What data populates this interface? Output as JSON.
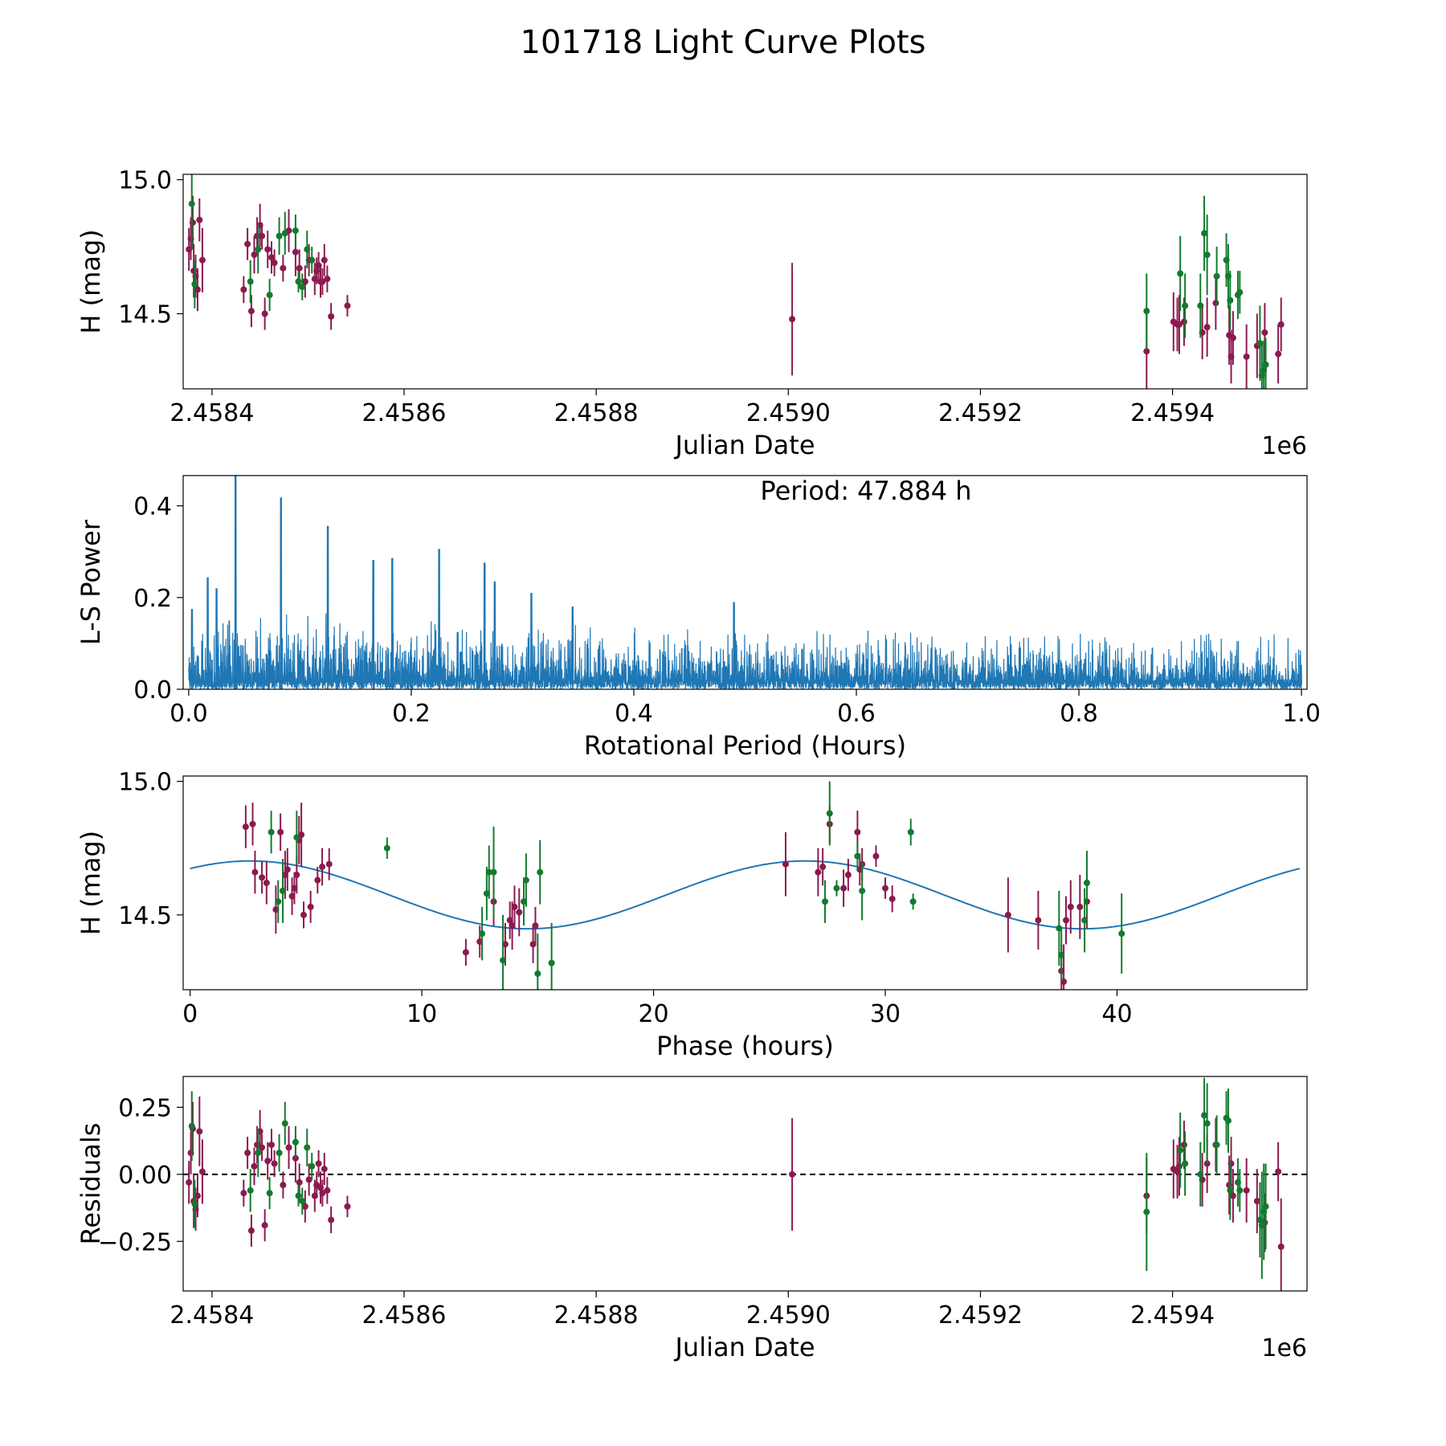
{
  "figure_title": "101718 Light Curve Plots",
  "colors": {
    "magenta": "#8b1a4f",
    "green": "#137a2e",
    "blue": "#1f77b4"
  },
  "chart_data": [
    {
      "id": "lc",
      "type": "scatter",
      "xlabel": "Julian Date",
      "ylabel": "H (mag)",
      "offset_text": "1e6",
      "xlim": [
        2458370,
        2459540
      ],
      "ylim": [
        14.22,
        15.02
      ],
      "xticks": [
        2458400,
        2458600,
        2458800,
        2459000,
        2459200,
        2459400
      ],
      "xtick_labels": [
        "2.4584",
        "2.4586",
        "2.4588",
        "2.4590",
        "2.4592",
        "2.4594"
      ],
      "yticks": [
        14.5,
        15.0
      ],
      "ytick_labels": [
        "14.5",
        "15.0"
      ],
      "series": [
        {
          "name": "magenta",
          "color": "magenta",
          "x": [
            2458376,
            2458378,
            2458380,
            2458381,
            2458383,
            2458385,
            2458387,
            2458390,
            2458433,
            2458437,
            2458441,
            2458444,
            2458447,
            2458450,
            2458452,
            2458455,
            2458458,
            2458462,
            2458465,
            2458474,
            2458480,
            2458487,
            2458491,
            2458497,
            2458501,
            2458507,
            2458509,
            2458511,
            2458513,
            2458515,
            2458517,
            2458520,
            2458524,
            2458541,
            2459004,
            2459373,
            2459401,
            2459405,
            2459407,
            2459412,
            2459431,
            2459436,
            2459445,
            2459459,
            2459461,
            2459463,
            2459477,
            2459488,
            2459496,
            2459510,
            2459513
          ],
          "y": [
            14.74,
            14.78,
            14.84,
            14.66,
            14.64,
            14.59,
            14.85,
            14.7,
            14.59,
            14.76,
            14.51,
            14.72,
            14.79,
            14.83,
            14.79,
            14.5,
            14.74,
            14.71,
            14.69,
            14.67,
            14.81,
            14.73,
            14.67,
            14.62,
            14.7,
            14.63,
            14.66,
            14.68,
            14.62,
            14.62,
            14.7,
            14.63,
            14.49,
            14.53,
            14.48,
            14.36,
            14.47,
            14.46,
            14.46,
            14.47,
            14.43,
            14.45,
            14.54,
            14.42,
            14.34,
            14.41,
            14.34,
            14.38,
            14.43,
            14.35,
            14.46
          ],
          "err": [
            0.08,
            0.08,
            0.1,
            0.1,
            0.08,
            0.08,
            0.08,
            0.12,
            0.05,
            0.06,
            0.06,
            0.07,
            0.07,
            0.08,
            0.05,
            0.06,
            0.07,
            0.06,
            0.05,
            0.05,
            0.08,
            0.09,
            0.07,
            0.06,
            0.06,
            0.06,
            0.05,
            0.05,
            0.06,
            0.05,
            0.06,
            0.05,
            0.05,
            0.04,
            0.21,
            0.14,
            0.11,
            0.1,
            0.11,
            0.09,
            0.1,
            0.11,
            0.1,
            0.11,
            0.1,
            0.1,
            0.12,
            0.12,
            0.11,
            0.11,
            0.1
          ]
        },
        {
          "name": "green",
          "color": "green",
          "x": [
            2458379,
            2458382,
            2458440,
            2458448,
            2458460,
            2458470,
            2458476,
            2458487,
            2458490,
            2458494,
            2458499,
            2458504,
            2459373,
            2459408,
            2459413,
            2459429,
            2459433,
            2459436,
            2459446,
            2459456,
            2459458,
            2459460,
            2459468,
            2459470,
            2459491,
            2459493,
            2459495,
            2459497
          ],
          "y": [
            14.91,
            14.61,
            14.62,
            14.74,
            14.57,
            14.79,
            14.8,
            14.81,
            14.62,
            14.6,
            14.74,
            14.7,
            14.51,
            14.65,
            14.53,
            14.53,
            14.8,
            14.72,
            14.64,
            14.7,
            14.64,
            14.55,
            14.57,
            14.58,
            14.39,
            14.27,
            14.29,
            14.31
          ],
          "err": [
            0.17,
            0.09,
            0.08,
            0.09,
            0.06,
            0.07,
            0.08,
            0.06,
            0.04,
            0.05,
            0.07,
            0.05,
            0.14,
            0.14,
            0.12,
            0.12,
            0.14,
            0.15,
            0.11,
            0.1,
            0.12,
            0.11,
            0.09,
            0.08,
            0.14,
            0.12,
            0.11,
            0.1
          ]
        }
      ]
    },
    {
      "id": "periodogram",
      "type": "line",
      "xlabel": "Rotational Period (Hours)",
      "ylabel": "L-S Power",
      "annotation": "Period: 47.884 h",
      "xlim": [
        -0.005,
        1.005
      ],
      "ylim": [
        0,
        0.466
      ],
      "xticks": [
        0,
        0.2,
        0.4,
        0.6,
        0.8,
        1.0
      ],
      "xtick_labels": [
        "0.0",
        "0.2",
        "0.4",
        "0.6",
        "0.8",
        "1.0"
      ],
      "yticks": [
        0,
        0.2,
        0.4
      ],
      "ytick_labels": [
        "0.0",
        "0.2",
        "0.4"
      ],
      "peaks": [
        {
          "x": 0.042,
          "y": 0.466
        },
        {
          "x": 0.083,
          "y": 0.418
        },
        {
          "x": 0.125,
          "y": 0.356
        },
        {
          "x": 0.166,
          "y": 0.282
        },
        {
          "x": 0.183,
          "y": 0.286
        },
        {
          "x": 0.225,
          "y": 0.306
        },
        {
          "x": 0.266,
          "y": 0.276
        },
        {
          "x": 0.017,
          "y": 0.244
        },
        {
          "x": 0.025,
          "y": 0.22
        },
        {
          "x": 0.275,
          "y": 0.235
        },
        {
          "x": 0.308,
          "y": 0.21
        },
        {
          "x": 0.49,
          "y": 0.19
        },
        {
          "x": 0.345,
          "y": 0.18
        },
        {
          "x": 0.003,
          "y": 0.175
        }
      ],
      "noise_envelope": {
        "x": [
          0,
          0.1,
          0.3,
          0.5,
          1.0
        ],
        "y": [
          0.15,
          0.14,
          0.12,
          0.11,
          0.1
        ]
      }
    },
    {
      "id": "phase",
      "type": "scatter",
      "xlabel": "Phase (hours)",
      "ylabel": "H (mag)",
      "xlim": [
        -0.3,
        48.2
      ],
      "ylim": [
        14.22,
        15.02
      ],
      "xticks": [
        0,
        10,
        20,
        30,
        40
      ],
      "xtick_labels": [
        "0",
        "10",
        "20",
        "30",
        "40"
      ],
      "yticks": [
        14.5,
        15.0
      ],
      "ytick_labels": [
        "14.5",
        "15.0"
      ],
      "model": {
        "mean": 14.575,
        "amplitude": 0.127,
        "period_h": 47.884,
        "peak_phase": 2.6
      },
      "series": [
        {
          "name": "magenta",
          "color": "magenta",
          "x": [
            2.4,
            2.7,
            2.8,
            3.1,
            3.3,
            3.7,
            3.9,
            4.0,
            4.1,
            4.2,
            4.4,
            4.5,
            4.6,
            4.7,
            4.8,
            4.9,
            5.2,
            5.5,
            5.7,
            6.0,
            11.9,
            12.5,
            13.1,
            13.6,
            13.8,
            13.9,
            14.0,
            14.2,
            14.8,
            14.9,
            25.7,
            27.1,
            27.3,
            27.6,
            28.2,
            28.4,
            28.8,
            28.9,
            29.0,
            29.6,
            30.0,
            30.3,
            35.3,
            36.6,
            37.6,
            37.7,
            37.8,
            38.0,
            38.4,
            38.7
          ],
          "y": [
            14.83,
            14.84,
            14.66,
            14.64,
            14.62,
            14.52,
            14.81,
            14.59,
            14.65,
            14.67,
            14.57,
            14.6,
            14.65,
            14.78,
            14.8,
            14.5,
            14.53,
            14.63,
            14.68,
            14.69,
            14.36,
            14.4,
            14.55,
            14.39,
            14.48,
            14.46,
            14.53,
            14.51,
            14.39,
            14.46,
            14.69,
            14.66,
            14.68,
            14.84,
            14.6,
            14.65,
            14.81,
            14.67,
            14.69,
            14.72,
            14.6,
            14.56,
            14.5,
            14.48,
            14.29,
            14.25,
            14.48,
            14.53,
            14.53,
            14.55
          ],
          "err": [
            0.08,
            0.08,
            0.08,
            0.06,
            0.08,
            0.09,
            0.07,
            0.08,
            0.09,
            0.08,
            0.07,
            0.06,
            0.07,
            0.09,
            0.12,
            0.05,
            0.06,
            0.05,
            0.07,
            0.06,
            0.05,
            0.06,
            0.09,
            0.08,
            0.07,
            0.09,
            0.08,
            0.09,
            0.07,
            0.07,
            0.12,
            0.09,
            0.07,
            0.07,
            0.07,
            0.06,
            0.08,
            0.06,
            0.06,
            0.04,
            0.04,
            0.05,
            0.14,
            0.11,
            0.1,
            0.14,
            0.09,
            0.1,
            0.12,
            0.1
          ],
          "hmm": 0
        },
        {
          "name": "green",
          "color": "green",
          "x": [
            3.5,
            3.8,
            4.0,
            4.6,
            8.5,
            12.6,
            12.8,
            12.9,
            13.1,
            13.5,
            14.4,
            14.5,
            15.0,
            15.1,
            15.6,
            27.4,
            27.6,
            27.9,
            28.8,
            29.0,
            31.1,
            31.2,
            37.5,
            37.6,
            38.6,
            38.7,
            40.2
          ],
          "y": [
            14.81,
            14.55,
            14.59,
            14.79,
            14.75,
            14.43,
            14.58,
            14.66,
            14.66,
            14.33,
            14.55,
            14.63,
            14.28,
            14.66,
            14.32,
            14.55,
            14.88,
            14.6,
            14.72,
            14.59,
            14.81,
            14.55,
            14.45,
            14.35,
            14.48,
            14.62,
            14.43
          ],
          "err": [
            0.08,
            0.08,
            0.12,
            0.1,
            0.04,
            0.1,
            0.1,
            0.1,
            0.17,
            0.17,
            0.09,
            0.1,
            0.15,
            0.12,
            0.15,
            0.08,
            0.12,
            0.03,
            0.05,
            0.11,
            0.05,
            0.03,
            0.14,
            0.1,
            0.12,
            0.12,
            0.15
          ]
        }
      ]
    },
    {
      "id": "residuals",
      "type": "scatter",
      "xlabel": "Julian Date",
      "ylabel": "Residuals",
      "offset_text": "1e6",
      "xlim": [
        2458370,
        2459540
      ],
      "ylim": [
        -0.435,
        0.365
      ],
      "xticks": [
        2458400,
        2458600,
        2458800,
        2459000,
        2459200,
        2459400
      ],
      "xtick_labels": [
        "2.4584",
        "2.4586",
        "2.4588",
        "2.4590",
        "2.4592",
        "2.4594"
      ],
      "yticks": [
        -0.25,
        0.0,
        0.25
      ],
      "ytick_labels": [
        "−0.25",
        "0.00",
        "0.25"
      ],
      "zero_line": true,
      "series": [
        {
          "name": "magenta",
          "color": "magenta",
          "x": [
            2458376,
            2458378,
            2458380,
            2458381,
            2458383,
            2458385,
            2458387,
            2458390,
            2458433,
            2458437,
            2458441,
            2458444,
            2458447,
            2458450,
            2458452,
            2458455,
            2458458,
            2458462,
            2458465,
            2458474,
            2458480,
            2458487,
            2458491,
            2458497,
            2458501,
            2458507,
            2458509,
            2458511,
            2458513,
            2458515,
            2458517,
            2458520,
            2458524,
            2458541,
            2459004,
            2459373,
            2459401,
            2459405,
            2459407,
            2459412,
            2459431,
            2459436,
            2459445,
            2459459,
            2459461,
            2459463,
            2459477,
            2459488,
            2459496,
            2459510,
            2459513
          ],
          "y": [
            -0.03,
            0.08,
            0.17,
            -0.1,
            -0.13,
            -0.08,
            0.16,
            0.01,
            -0.07,
            0.08,
            -0.21,
            0.03,
            0.11,
            0.16,
            0.1,
            -0.19,
            0.05,
            0.11,
            0.04,
            -0.04,
            0.1,
            0.06,
            -0.03,
            -0.12,
            -0.02,
            -0.08,
            -0.04,
            0.04,
            -0.05,
            -0.07,
            0.02,
            -0.06,
            -0.17,
            -0.12,
            0.0,
            -0.08,
            0.02,
            0.01,
            0.03,
            0.11,
            -0.02,
            0.04,
            0.11,
            -0.04,
            0.04,
            -0.08,
            -0.06,
            -0.1,
            -0.18,
            0.01,
            -0.27
          ],
          "err": [
            0.08,
            0.08,
            0.1,
            0.1,
            0.08,
            0.08,
            0.13,
            0.12,
            0.05,
            0.06,
            0.06,
            0.07,
            0.07,
            0.08,
            0.05,
            0.06,
            0.07,
            0.06,
            0.05,
            0.05,
            0.08,
            0.09,
            0.07,
            0.06,
            0.06,
            0.06,
            0.05,
            0.05,
            0.06,
            0.05,
            0.06,
            0.05,
            0.05,
            0.04,
            0.21,
            0.14,
            0.11,
            0.1,
            0.11,
            0.09,
            0.1,
            0.11,
            0.1,
            0.11,
            0.1,
            0.1,
            0.12,
            0.12,
            0.11,
            0.11,
            0.18
          ]
        },
        {
          "name": "green",
          "color": "green",
          "x": [
            2458379,
            2458382,
            2458440,
            2458448,
            2458460,
            2458470,
            2458476,
            2458487,
            2458490,
            2458494,
            2458499,
            2458504,
            2459373,
            2459408,
            2459413,
            2459429,
            2459433,
            2459436,
            2459446,
            2459456,
            2459458,
            2459460,
            2459468,
            2459470,
            2459491,
            2459493,
            2459495,
            2459497
          ],
          "y": [
            0.18,
            -0.11,
            -0.06,
            0.08,
            -0.07,
            0.08,
            0.19,
            0.12,
            -0.08,
            -0.1,
            0.1,
            0.03,
            -0.14,
            0.09,
            0.04,
            0.0,
            0.22,
            0.19,
            0.11,
            0.21,
            0.2,
            -0.06,
            -0.03,
            -0.06,
            -0.17,
            -0.19,
            -0.14,
            -0.12
          ],
          "err": [
            0.13,
            0.09,
            0.08,
            0.09,
            0.06,
            0.07,
            0.08,
            0.06,
            0.04,
            0.05,
            0.07,
            0.05,
            0.22,
            0.14,
            0.12,
            0.12,
            0.14,
            0.15,
            0.11,
            0.1,
            0.12,
            0.11,
            0.09,
            0.08,
            0.14,
            0.2,
            0.18,
            0.16
          ]
        }
      ]
    }
  ]
}
